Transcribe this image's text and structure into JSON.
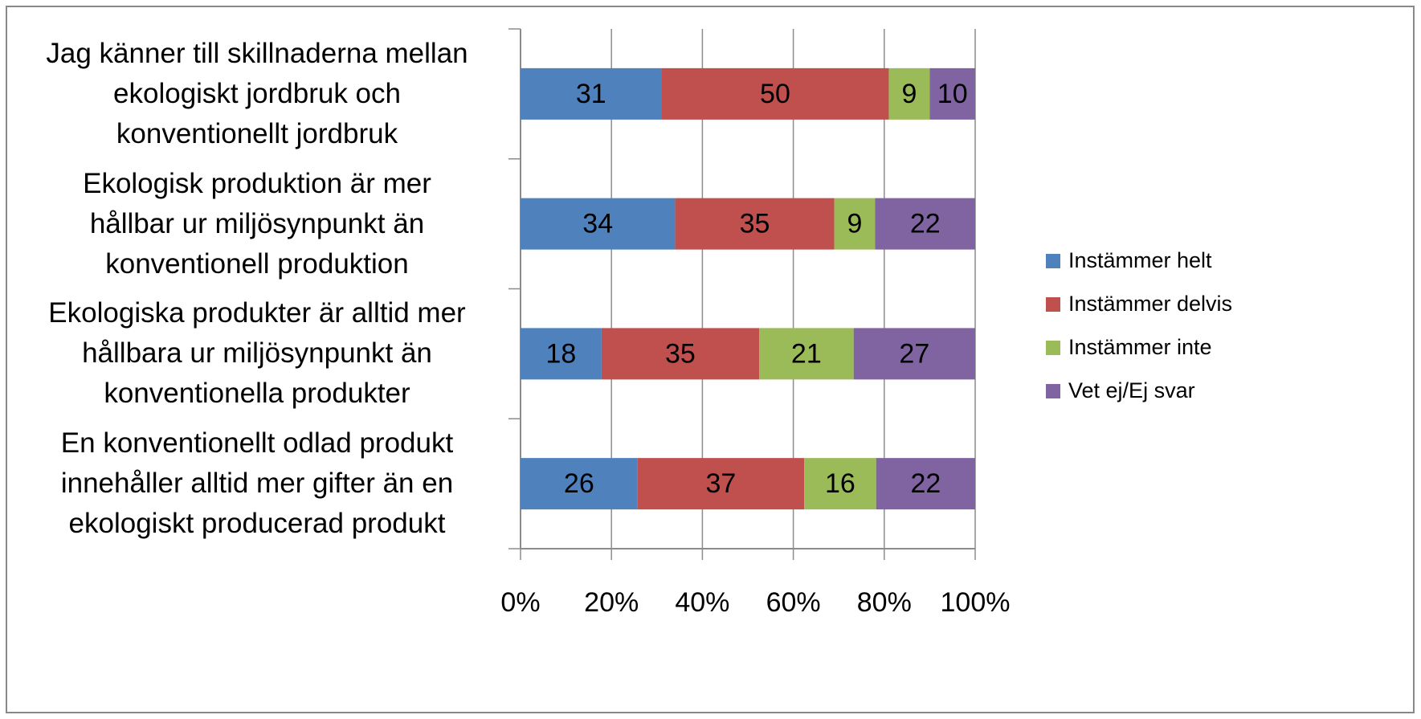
{
  "chart_data": {
    "type": "bar",
    "orientation": "horizontal",
    "stacked": "percent",
    "categories": [
      "Jag känner till skillnaderna mellan\nekologiskt jordbruk och\nkonventionellt jordbruk",
      "Ekologisk produktion är mer\nhållbar ur miljösynpunkt än\nkonventionell produktion",
      "Ekologiska produkter är alltid mer\nhållbara ur miljösynpunkt än\nkonventionella produkter",
      "En konventionellt odlad produkt\ninnehåller alltid mer gifter än en\nekologiskt producerad produkt"
    ],
    "series": [
      {
        "name": "Instämmer helt",
        "color": "#4f81bd",
        "values": [
          31,
          34,
          18,
          26
        ]
      },
      {
        "name": "Instämmer delvis",
        "color": "#c0504d",
        "values": [
          50,
          35,
          35,
          37
        ]
      },
      {
        "name": "Instämmer inte",
        "color": "#9bbb59",
        "values": [
          9,
          9,
          21,
          16
        ]
      },
      {
        "name": "Vet ej/Ej svar",
        "color": "#8064a2",
        "values": [
          10,
          22,
          27,
          22
        ]
      }
    ],
    "xlim": [
      0,
      100
    ],
    "xticks": [
      {
        "value": 0,
        "label": "0%"
      },
      {
        "value": 20,
        "label": "20%"
      },
      {
        "value": 40,
        "label": "40%"
      },
      {
        "value": 60,
        "label": "60%"
      },
      {
        "value": 80,
        "label": "80%"
      },
      {
        "value": 100,
        "label": "100%"
      }
    ],
    "grid": true,
    "legend": "right"
  }
}
